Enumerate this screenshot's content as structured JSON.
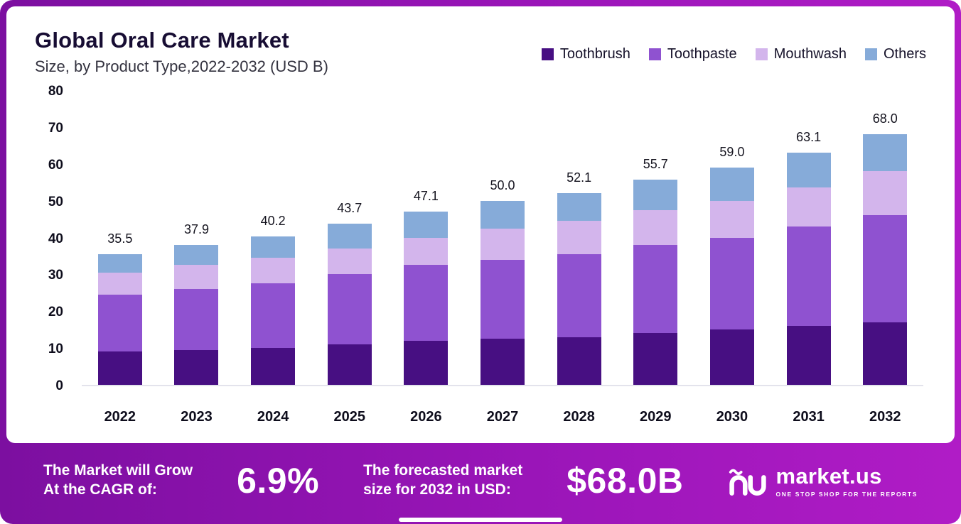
{
  "header": {
    "title": "Global Oral Care  Market",
    "subtitle": "Size, by Product Type,2022-2032 (USD B)"
  },
  "legend": [
    {
      "label": "Toothbrush",
      "color": "#470f82"
    },
    {
      "label": "Toothpaste",
      "color": "#8f52d0"
    },
    {
      "label": "Mouthwash",
      "color": "#d3b5ec"
    },
    {
      "label": "Others",
      "color": "#86abd9"
    }
  ],
  "chart_data": {
    "type": "bar",
    "stacked": true,
    "title": "Global Oral Care Market",
    "subtitle": "Size, by Product Type,2022-2032 (USD B)",
    "xlabel": "",
    "ylabel": "",
    "ylim": [
      0,
      80
    ],
    "yticks": [
      0,
      10,
      20,
      30,
      40,
      50,
      60,
      70,
      80
    ],
    "grid": false,
    "legend_position": "top-right",
    "categories": [
      "2022",
      "2023",
      "2024",
      "2025",
      "2026",
      "2027",
      "2028",
      "2029",
      "2030",
      "2031",
      "2032"
    ],
    "series": [
      {
        "name": "Toothbrush",
        "color": "#470f82",
        "values": [
          9,
          9.5,
          10,
          11,
          12,
          12.5,
          13,
          14,
          15,
          16,
          17
        ]
      },
      {
        "name": "Toothpaste",
        "color": "#8f52d0",
        "values": [
          15.5,
          16.5,
          17.5,
          19,
          20.5,
          21.5,
          22.5,
          24,
          25,
          27,
          29
        ]
      },
      {
        "name": "Mouthwash",
        "color": "#d3b5ec",
        "values": [
          6,
          6.5,
          7,
          7,
          7.5,
          8.5,
          9,
          9.5,
          10,
          10.5,
          12
        ]
      },
      {
        "name": "Others",
        "color": "#86abd9",
        "values": [
          5,
          5.4,
          5.7,
          6.7,
          7.1,
          7.5,
          7.6,
          8.2,
          9,
          9.6,
          10
        ]
      }
    ],
    "totals": [
      35.5,
      37.9,
      40.2,
      43.7,
      47.1,
      50.0,
      52.1,
      55.7,
      59.0,
      63.1,
      68.0
    ],
    "total_labels": [
      "35.5",
      "37.9",
      "40.2",
      "43.7",
      "47.1",
      "50.0",
      "52.1",
      "55.7",
      "59.0",
      "63.1",
      "68.0"
    ]
  },
  "footer": {
    "cagr_label_line1": "The Market will Grow",
    "cagr_label_line2": "At the CAGR of:",
    "cagr_value": "6.9%",
    "forecast_label_line1": "The forecasted market",
    "forecast_label_line2": "size for 2032 in USD:",
    "forecast_value": "$68.0B",
    "brand": "market.us",
    "brand_tagline": "ONE STOP SHOP FOR THE REPORTS"
  },
  "colors": {
    "frame_gradient_start": "#7c0fa0",
    "frame_gradient_end": "#b01cc6",
    "card_background": "#ffffff",
    "axis_text": "#0e0d1c"
  }
}
